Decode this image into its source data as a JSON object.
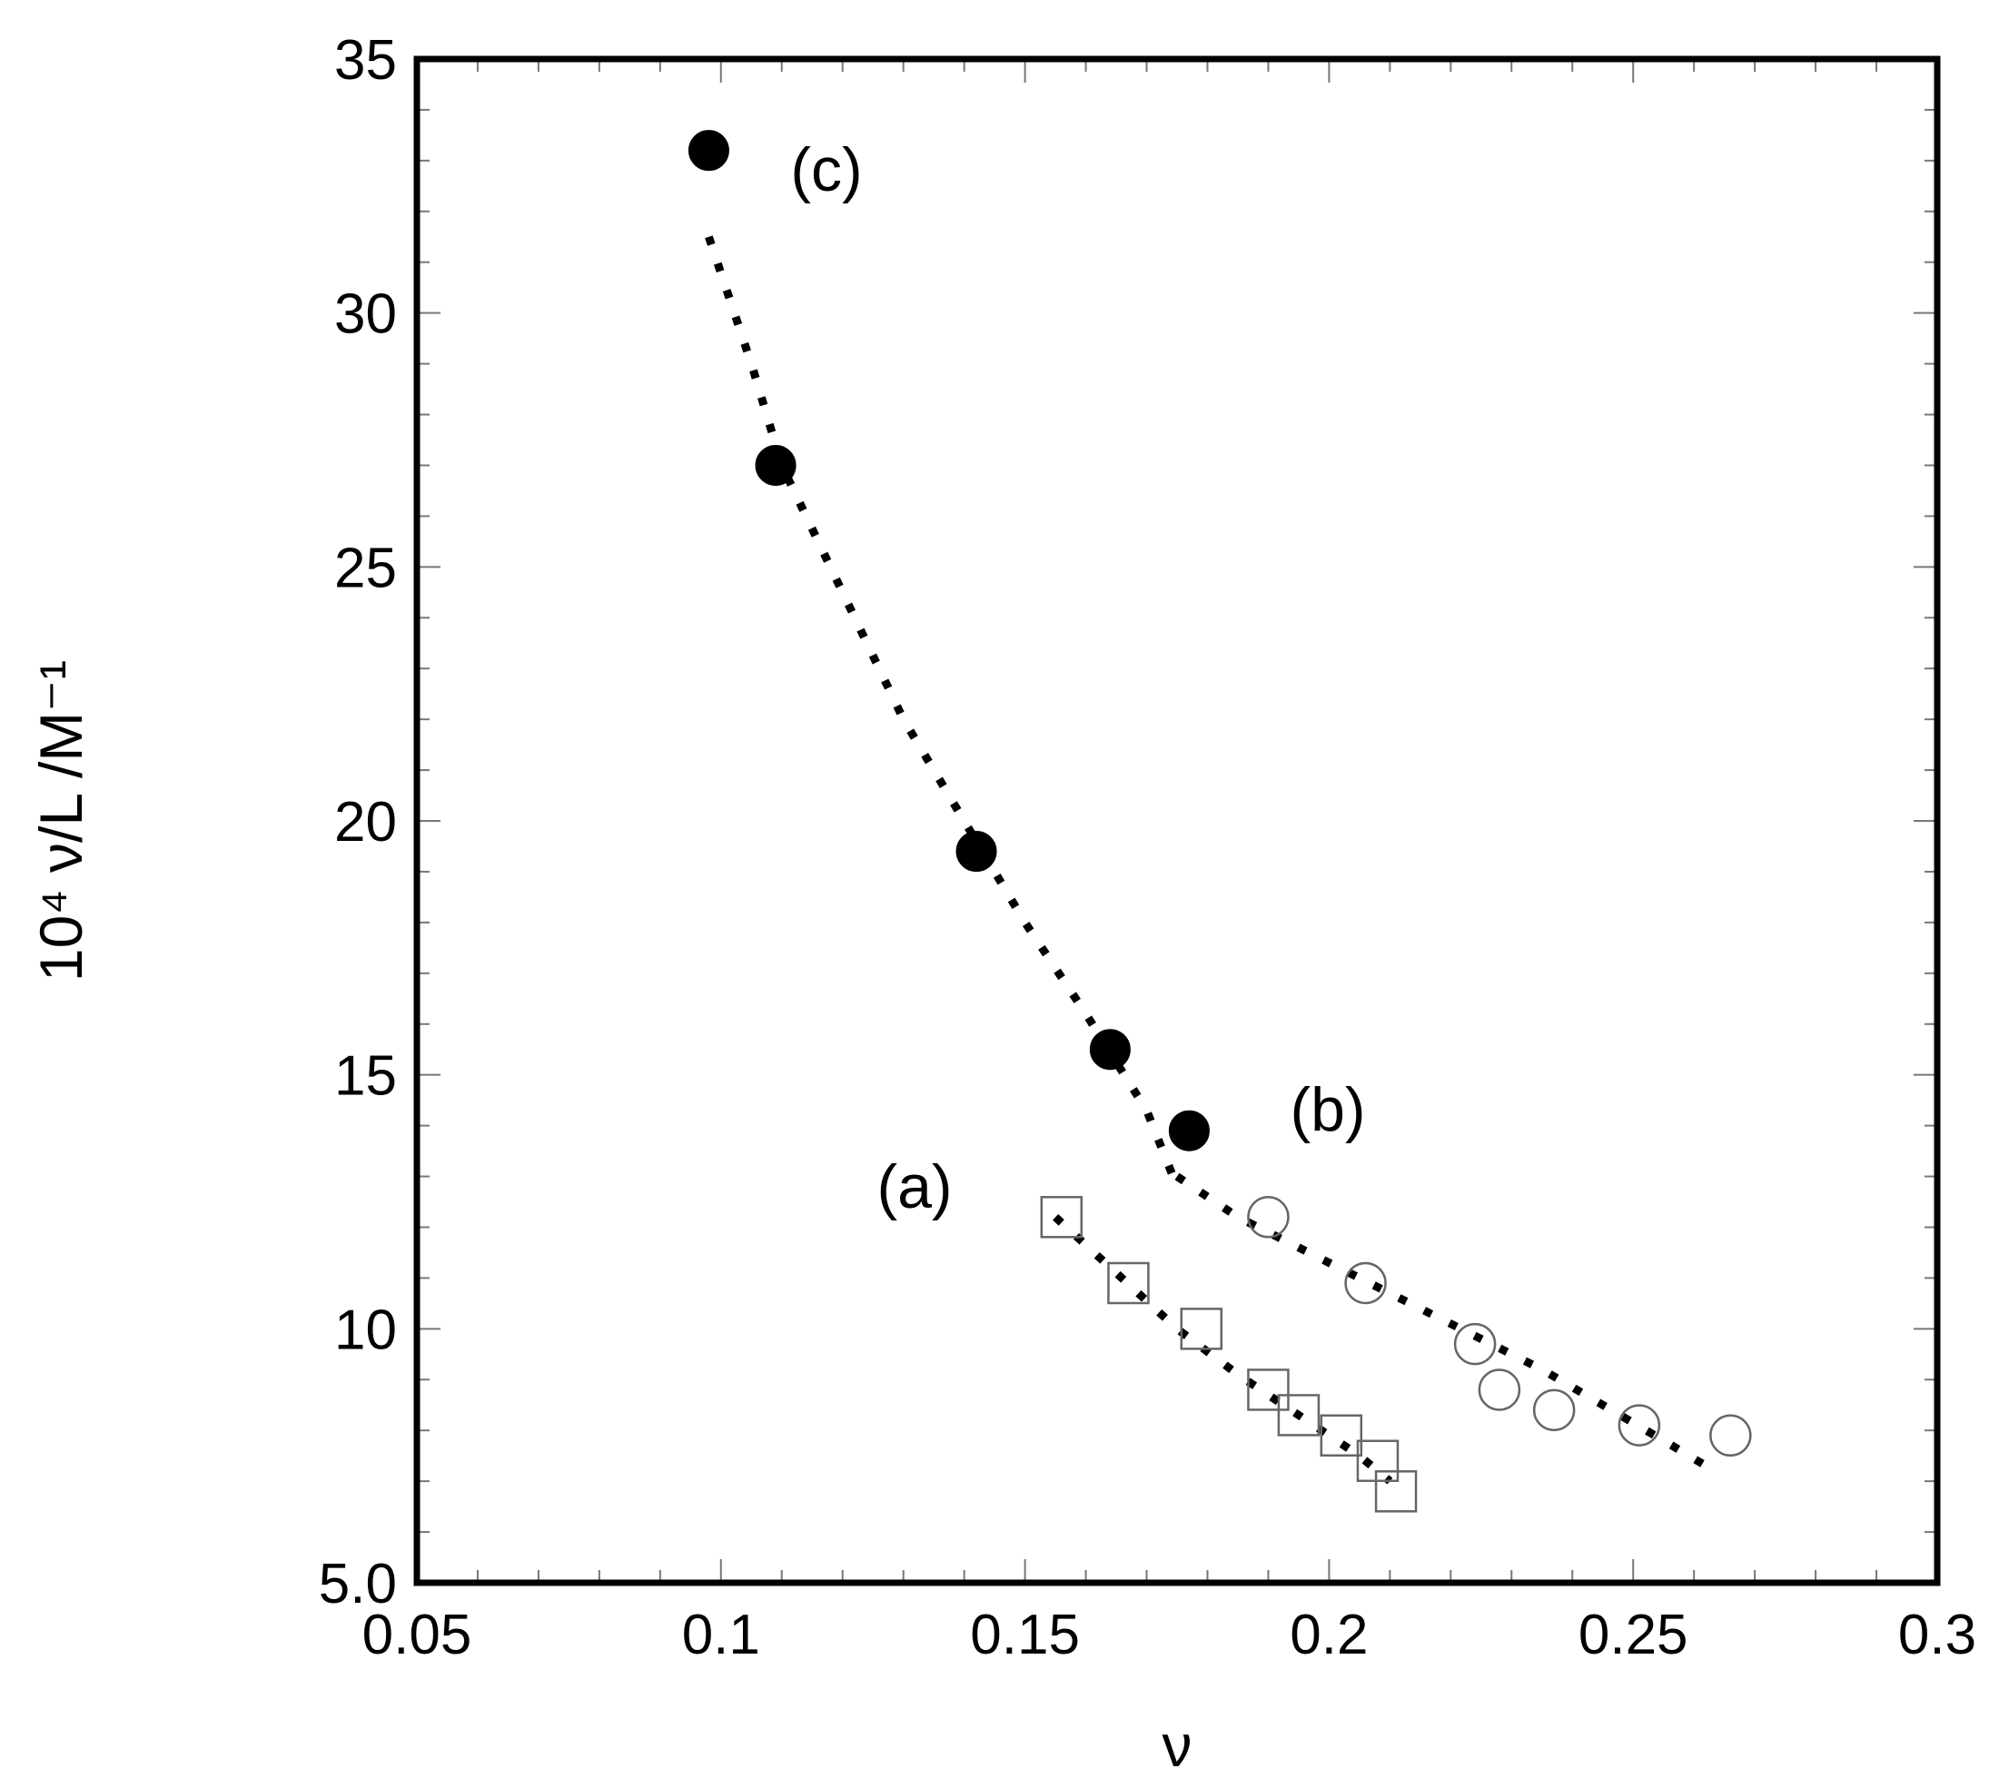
{
  "chart_data": {
    "type": "scatter",
    "xlabel": "ν",
    "ylabel": "10⁴ ν/L /M⁻¹",
    "xlim": [
      0.05,
      0.3
    ],
    "ylim": [
      5.0,
      35
    ],
    "x_ticks": [
      0.05,
      0.1,
      0.15,
      0.2,
      0.25,
      0.3
    ],
    "x_tick_labels": [
      "0.05",
      "0.1",
      "0.15",
      "0.2",
      "0.25",
      "0.3"
    ],
    "y_ticks": [
      5,
      10,
      15,
      20,
      25,
      30,
      35
    ],
    "y_tick_labels": [
      "5.0",
      "10",
      "15",
      "20",
      "25",
      "30",
      "35"
    ],
    "x_minor_step": 0.01,
    "y_minor_step": 1,
    "grid": false,
    "legend": "none",
    "series": [
      {
        "label": "(a)",
        "marker": "open-square",
        "x": [
          0.156,
          0.167,
          0.179,
          0.19,
          0.195,
          0.202,
          0.208,
          0.211
        ],
        "y": [
          12.2,
          10.9,
          10.0,
          8.8,
          8.3,
          7.9,
          7.4,
          6.8
        ]
      },
      {
        "label": "(b)",
        "marker": "open-circle",
        "x": [
          0.19,
          0.206,
          0.224,
          0.228,
          0.237,
          0.251,
          0.266
        ],
        "y": [
          12.2,
          10.9,
          9.7,
          8.8,
          8.4,
          8.1,
          7.9
        ]
      },
      {
        "label": "(c)",
        "marker": "filled-circle",
        "x": [
          0.098,
          0.109,
          0.142,
          0.164,
          0.177
        ],
        "y": [
          33.2,
          27.0,
          19.4,
          15.5,
          13.9
        ]
      }
    ],
    "fits": [
      {
        "style": "dotted",
        "x": [
          0.155,
          0.165,
          0.175,
          0.185,
          0.195,
          0.205,
          0.21
        ],
        "y": [
          12.2,
          11.1,
          10.0,
          9.1,
          8.3,
          7.5,
          7.0
        ]
      },
      {
        "style": "dotted",
        "x": [
          0.098,
          0.105,
          0.11,
          0.12,
          0.13,
          0.14,
          0.15,
          0.16,
          0.17,
          0.175
        ],
        "y": [
          31.5,
          29.0,
          27.0,
          24.5,
          22.0,
          20.0,
          18.0,
          16.2,
          14.3,
          12.8
        ]
      },
      {
        "style": "dotted",
        "x": [
          0.175,
          0.185,
          0.195,
          0.205,
          0.215,
          0.225,
          0.235,
          0.245,
          0.255,
          0.262
        ],
        "y": [
          13.0,
          12.2,
          11.6,
          11.0,
          10.4,
          9.8,
          9.2,
          8.5,
          7.8,
          7.3
        ]
      }
    ]
  }
}
